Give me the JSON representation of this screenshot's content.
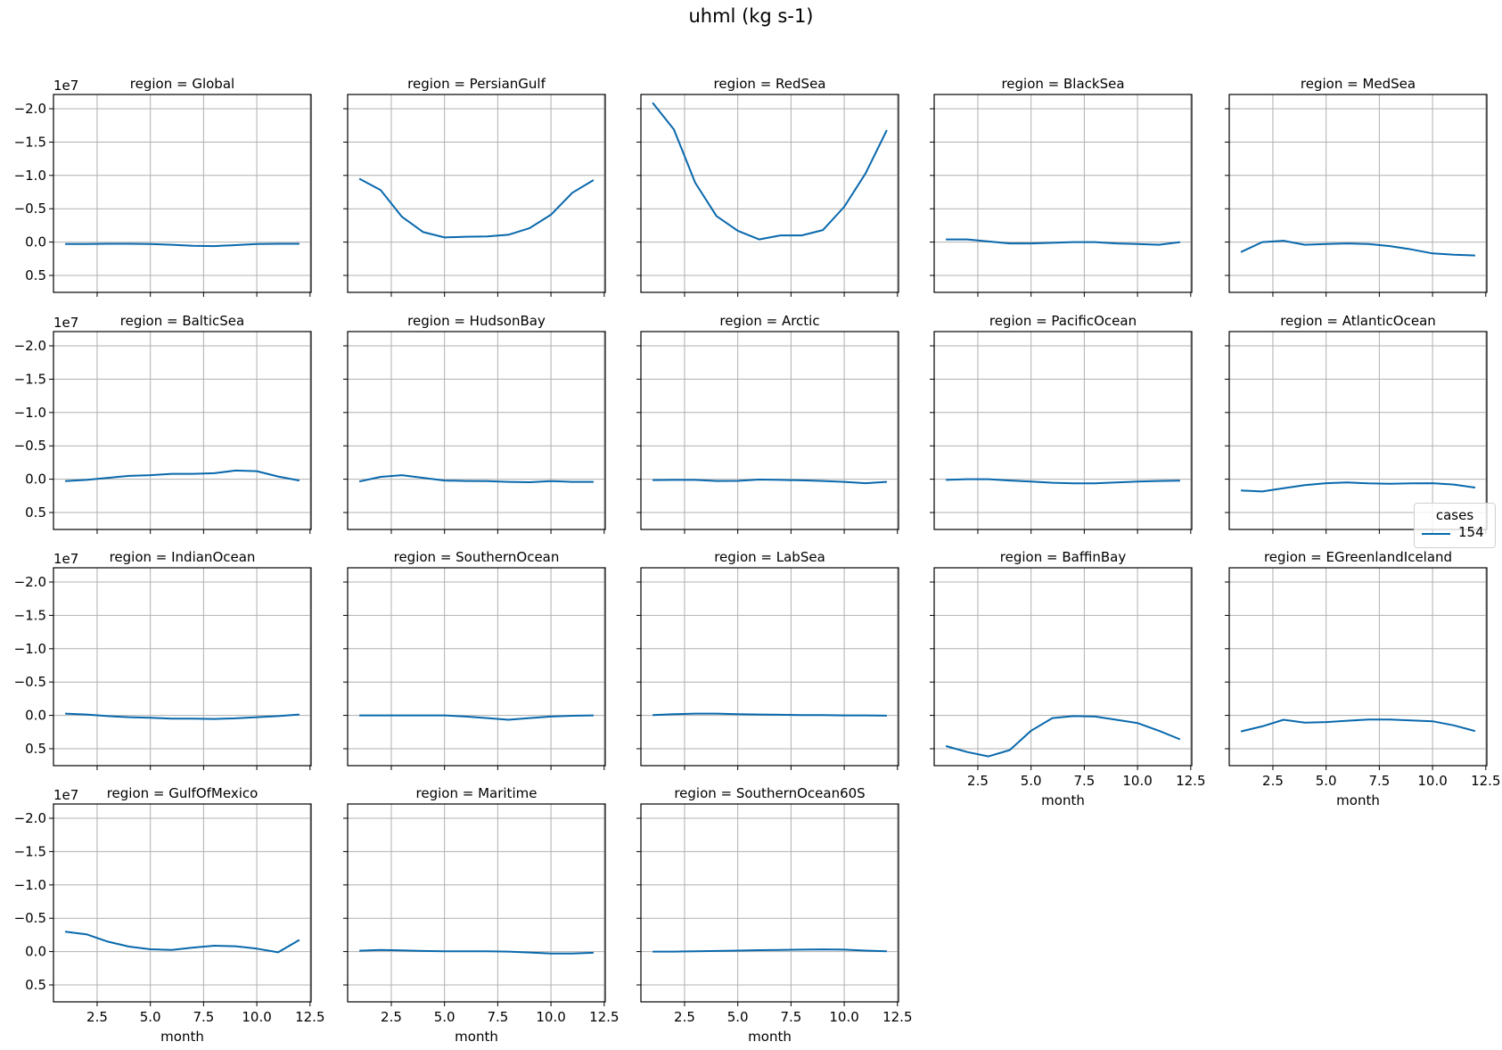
{
  "figure": {
    "title": "uhml (kg s-1)",
    "line_color": "#0868ac",
    "grid_color": "#b0b0b0"
  },
  "legend": {
    "title": "cases",
    "entries": [
      {
        "label": "154",
        "color": "#0868ac"
      }
    ]
  },
  "chart_data": {
    "type": "line",
    "title": "uhml (kg s-1)",
    "xlabel": "month",
    "ylabel": "",
    "y_scale_label": "1e7",
    "y_inverted": true,
    "ylim": [
      0.754,
      -2.214
    ],
    "xlim": [
      0.45,
      12.55
    ],
    "xticks": [
      2.5,
      5.0,
      7.5,
      10.0,
      12.5
    ],
    "xtick_labels": [
      "2.5",
      "5.0",
      "7.5",
      "10.0",
      "12.5"
    ],
    "yticks": [
      -2.0,
      -1.5,
      -1.0,
      -0.5,
      0.0,
      0.5
    ],
    "ytick_labels": [
      "−2.0",
      "−1.5",
      "−1.0",
      "−0.5",
      "0.0",
      "0.5"
    ],
    "grid": true,
    "legend_title": "cases",
    "legend_position": "right-center",
    "x": [
      1,
      2,
      3,
      4,
      5,
      6,
      7,
      8,
      9,
      10,
      11,
      12
    ],
    "panels": [
      {
        "region": "Global",
        "title": "region = Global",
        "series": [
          {
            "name": "154",
            "values": [
              0.03,
              0.03,
              0.025,
              0.025,
              0.03,
              0.04,
              0.055,
              0.06,
              0.045,
              0.03,
              0.025,
              0.025
            ]
          }
        ]
      },
      {
        "region": "PersianGulf",
        "title": "region = PersianGulf",
        "series": [
          {
            "name": "154",
            "values": [
              -0.95,
              -0.78,
              -0.38,
              -0.15,
              -0.07,
              -0.08,
              -0.085,
              -0.11,
              -0.21,
              -0.41,
              -0.74,
              -0.93
            ]
          }
        ]
      },
      {
        "region": "RedSea",
        "title": "region = RedSea",
        "series": [
          {
            "name": "154",
            "values": [
              -2.09,
              -1.69,
              -0.89,
              -0.39,
              -0.17,
              -0.04,
              -0.1,
              -0.1,
              -0.18,
              -0.53,
              -1.03,
              -1.68
            ]
          }
        ]
      },
      {
        "region": "BlackSea",
        "title": "region = BlackSea",
        "series": [
          {
            "name": "154",
            "values": [
              -0.04,
              -0.04,
              -0.01,
              0.02,
              0.02,
              0.01,
              0.0,
              0.0,
              0.02,
              0.03,
              0.04,
              0.0
            ]
          }
        ]
      },
      {
        "region": "MedSea",
        "title": "region = MedSea",
        "series": [
          {
            "name": "154",
            "values": [
              0.15,
              0.0,
              -0.02,
              0.04,
              0.03,
              0.02,
              0.03,
              0.06,
              0.11,
              0.17,
              0.19,
              0.2
            ]
          }
        ]
      },
      {
        "region": "BalticSea",
        "title": "region = BalticSea",
        "series": [
          {
            "name": "154",
            "values": [
              0.03,
              0.01,
              -0.02,
              -0.05,
              -0.06,
              -0.08,
              -0.08,
              -0.09,
              -0.13,
              -0.12,
              -0.04,
              0.02
            ]
          }
        ]
      },
      {
        "region": "HudsonBay",
        "title": "region = HudsonBay",
        "series": [
          {
            "name": "154",
            "values": [
              0.035,
              -0.035,
              -0.06,
              -0.02,
              0.02,
              0.027,
              0.03,
              0.04,
              0.045,
              0.03,
              0.04,
              0.04
            ]
          }
        ]
      },
      {
        "region": "Arctic",
        "title": "region = Arctic",
        "series": [
          {
            "name": "154",
            "values": [
              0.013,
              0.01,
              0.01,
              0.027,
              0.025,
              0.005,
              0.01,
              0.018,
              0.027,
              0.04,
              0.06,
              0.04
            ]
          }
        ]
      },
      {
        "region": "PacificOcean",
        "title": "region = PacificOcean",
        "series": [
          {
            "name": "154",
            "values": [
              0.01,
              0.0,
              0.0,
              0.02,
              0.036,
              0.054,
              0.063,
              0.063,
              0.05,
              0.036,
              0.027,
              0.023
            ]
          }
        ]
      },
      {
        "region": "AtlanticOcean",
        "title": "region = AtlanticOcean",
        "series": [
          {
            "name": "154",
            "values": [
              0.17,
              0.185,
              0.135,
              0.09,
              0.06,
              0.05,
              0.063,
              0.068,
              0.063,
              0.06,
              0.08,
              0.126
            ]
          }
        ]
      },
      {
        "region": "IndianOcean",
        "title": "region = IndianOcean",
        "series": [
          {
            "name": "154",
            "values": [
              -0.027,
              -0.013,
              0.01,
              0.027,
              0.035,
              0.05,
              0.05,
              0.053,
              0.044,
              0.027,
              0.01,
              -0.013
            ]
          }
        ]
      },
      {
        "region": "SouthernOcean",
        "title": "region = SouthernOcean",
        "series": [
          {
            "name": "154",
            "values": [
              0.0,
              0.0,
              0.0,
              0.0,
              0.0,
              0.018,
              0.04,
              0.066,
              0.04,
              0.018,
              0.005,
              0.0
            ]
          }
        ]
      },
      {
        "region": "LabSea",
        "title": "region = LabSea",
        "series": [
          {
            "name": "154",
            "values": [
              -0.005,
              -0.018,
              -0.027,
              -0.027,
              -0.018,
              -0.013,
              -0.009,
              -0.005,
              -0.005,
              0.0,
              0.0,
              0.004
            ]
          }
        ]
      },
      {
        "region": "BaffinBay",
        "title": "region = BaffinBay",
        "series": [
          {
            "name": "154",
            "values": [
              0.46,
              0.55,
              0.615,
              0.52,
              0.23,
              0.04,
              0.01,
              0.018,
              0.066,
              0.115,
              0.23,
              0.36
            ]
          }
        ]
      },
      {
        "region": "EGreenlandIceland",
        "title": "region = EGreenlandIceland",
        "series": [
          {
            "name": "154",
            "values": [
              0.24,
              0.165,
              0.066,
              0.11,
              0.1,
              0.08,
              0.062,
              0.062,
              0.075,
              0.088,
              0.15,
              0.235
            ]
          }
        ]
      },
      {
        "region": "GulfOfMexico",
        "title": "region = GulfOfMexico",
        "series": [
          {
            "name": "154",
            "values": [
              -0.3,
              -0.26,
              -0.15,
              -0.075,
              -0.035,
              -0.026,
              -0.06,
              -0.088,
              -0.08,
              -0.044,
              0.01,
              -0.175
            ]
          }
        ]
      },
      {
        "region": "Maritime",
        "title": "region = Maritime",
        "series": [
          {
            "name": "154",
            "values": [
              -0.013,
              -0.026,
              -0.018,
              -0.009,
              -0.004,
              -0.004,
              -0.004,
              0.0,
              0.013,
              0.03,
              0.03,
              0.018
            ]
          }
        ]
      },
      {
        "region": "SouthernOcean60S",
        "title": "region = SouthernOcean60S",
        "series": [
          {
            "name": "154",
            "values": [
              0.0,
              0.0,
              -0.004,
              -0.009,
              -0.015,
              -0.022,
              -0.026,
              -0.03,
              -0.033,
              -0.03,
              -0.015,
              -0.004
            ]
          }
        ]
      }
    ]
  }
}
